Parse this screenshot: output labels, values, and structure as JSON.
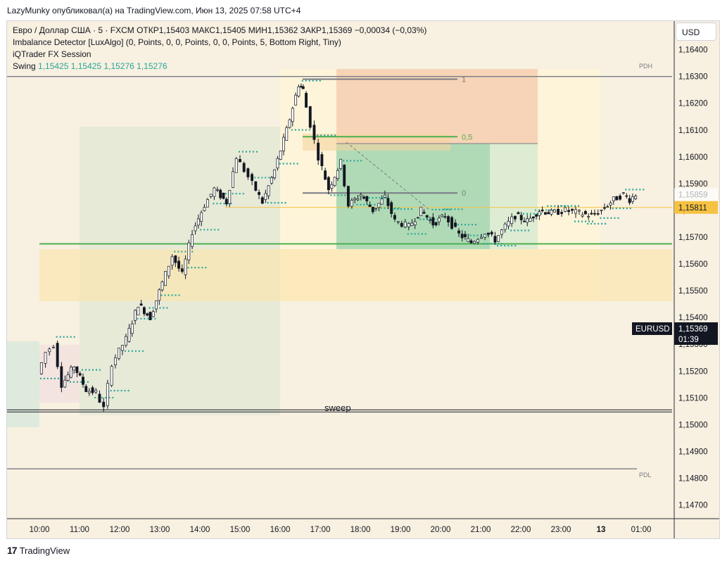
{
  "header": {
    "publish_line": "LazyMunky опубликовал(а) на TradingView.com, Июн 13, 2025 07:58 UTC+4"
  },
  "legend": {
    "symbol_line": "Евро / Доллар США · 5 · FXCM  ОТКР1,15403  МАКС1,15405  МИН1,15362  ЗАКР1,15369  −0,00034 (−0,03%)",
    "indicator_1": "Imbalance Detector [LuxAlgo] (0, Points, 0, 0, Points, 0, 0, Points, 5, Bottom Right, Tiny)",
    "indicator_2": "iQTrader FX Session",
    "swing_label": "Swing",
    "swing_values": "1,15425  1,15425  1,15276  1,15276"
  },
  "currency_button": "USD",
  "footer": {
    "brand": "TradingView"
  },
  "annotations": {
    "sweep": "sweep",
    "pdh": "PDH",
    "pdl": "PDL",
    "fib": [
      "1",
      "0,5",
      "0"
    ]
  },
  "colors": {
    "background": "#f8f0e0",
    "bull": "#ffffff",
    "bear": "#131722",
    "dots": "#26a69a",
    "yellow_line": "#f5c242",
    "green_line": "#4caf50",
    "fib_line": "#787b86"
  },
  "chart_data": {
    "type": "candlestick",
    "symbol": "EURUSD",
    "timeframe": "5",
    "x_ticks": [
      "10:00",
      "11:00",
      "12:00",
      "13:00",
      "14:00",
      "15:00",
      "16:00",
      "17:00",
      "18:00",
      "19:00",
      "20:00",
      "21:00",
      "22:00",
      "23:00",
      "13",
      "01:00"
    ],
    "y_ticks": [
      "1,16400",
      "1,16300",
      "1,16200",
      "1,16100",
      "1,16000",
      "1,15900",
      "1,15800",
      "1,15700",
      "1,15600",
      "1,15500",
      "1,15400",
      "1,15300",
      "1,15200",
      "1,15100",
      "1,15000",
      "1,14900",
      "1,14800",
      "1,14700"
    ],
    "y_range": [
      1.1467,
      1.1642
    ],
    "price_labels": [
      {
        "text": "1,15859",
        "value": 1.15859,
        "style": "faded"
      },
      {
        "text": "1,15811",
        "value": 1.15811,
        "style": "yellow"
      },
      {
        "symbol": "EURUSD",
        "text": "1,15369",
        "timer": "01:39",
        "value": 1.15369,
        "style": "dark"
      }
    ],
    "levels": {
      "pdh": 1.163,
      "pdl": 1.14835,
      "sweep": 1.1505,
      "yellow": 1.15811,
      "green": 1.15675,
      "fib_1": 1.1629,
      "fib_05": 1.16075,
      "fib_0": 1.15865
    },
    "close_path": [
      [
        10.0,
        1.1519
      ],
      [
        10.2,
        1.1527
      ],
      [
        10.4,
        1.153
      ],
      [
        10.6,
        1.1515
      ],
      [
        10.9,
        1.1522
      ],
      [
        11.2,
        1.1513
      ],
      [
        11.45,
        1.1512
      ],
      [
        11.65,
        1.1506
      ],
      [
        11.85,
        1.1523
      ],
      [
        12.2,
        1.1532
      ],
      [
        12.5,
        1.1545
      ],
      [
        12.8,
        1.154
      ],
      [
        13.1,
        1.1553
      ],
      [
        13.35,
        1.1563
      ],
      [
        13.6,
        1.1556
      ],
      [
        13.85,
        1.1572
      ],
      [
        14.15,
        1.1582
      ],
      [
        14.4,
        1.1588
      ],
      [
        14.7,
        1.1583
      ],
      [
        14.95,
        1.16
      ],
      [
        15.15,
        1.1595
      ],
      [
        15.35,
        1.159
      ],
      [
        15.6,
        1.1583
      ],
      [
        15.9,
        1.1595
      ],
      [
        16.2,
        1.161
      ],
      [
        16.5,
        1.1627
      ],
      [
        16.6,
        1.1625
      ],
      [
        16.8,
        1.1612
      ],
      [
        17.0,
        1.16
      ],
      [
        17.25,
        1.1588
      ],
      [
        17.55,
        1.1598
      ],
      [
        17.75,
        1.1582
      ],
      [
        18.05,
        1.1586
      ],
      [
        18.35,
        1.158
      ],
      [
        18.65,
        1.1585
      ],
      [
        18.9,
        1.1576
      ],
      [
        19.25,
        1.1574
      ],
      [
        19.55,
        1.158
      ],
      [
        19.85,
        1.1575
      ],
      [
        20.15,
        1.1578
      ],
      [
        20.5,
        1.1571
      ],
      [
        20.8,
        1.1568
      ],
      [
        21.15,
        1.1572
      ],
      [
        21.4,
        1.1569
      ],
      [
        21.65,
        1.1574
      ],
      [
        21.9,
        1.1578
      ],
      [
        22.2,
        1.1576
      ],
      [
        22.5,
        1.158
      ],
      [
        22.8,
        1.1579
      ],
      [
        23.15,
        1.158
      ],
      [
        23.5,
        1.1579
      ],
      [
        23.8,
        1.1578
      ],
      [
        24.05,
        1.158
      ],
      [
        24.35,
        1.1584
      ],
      [
        24.6,
        1.1586
      ],
      [
        24.75,
        1.1584
      ],
      [
        24.9,
        1.1586
      ]
    ]
  }
}
